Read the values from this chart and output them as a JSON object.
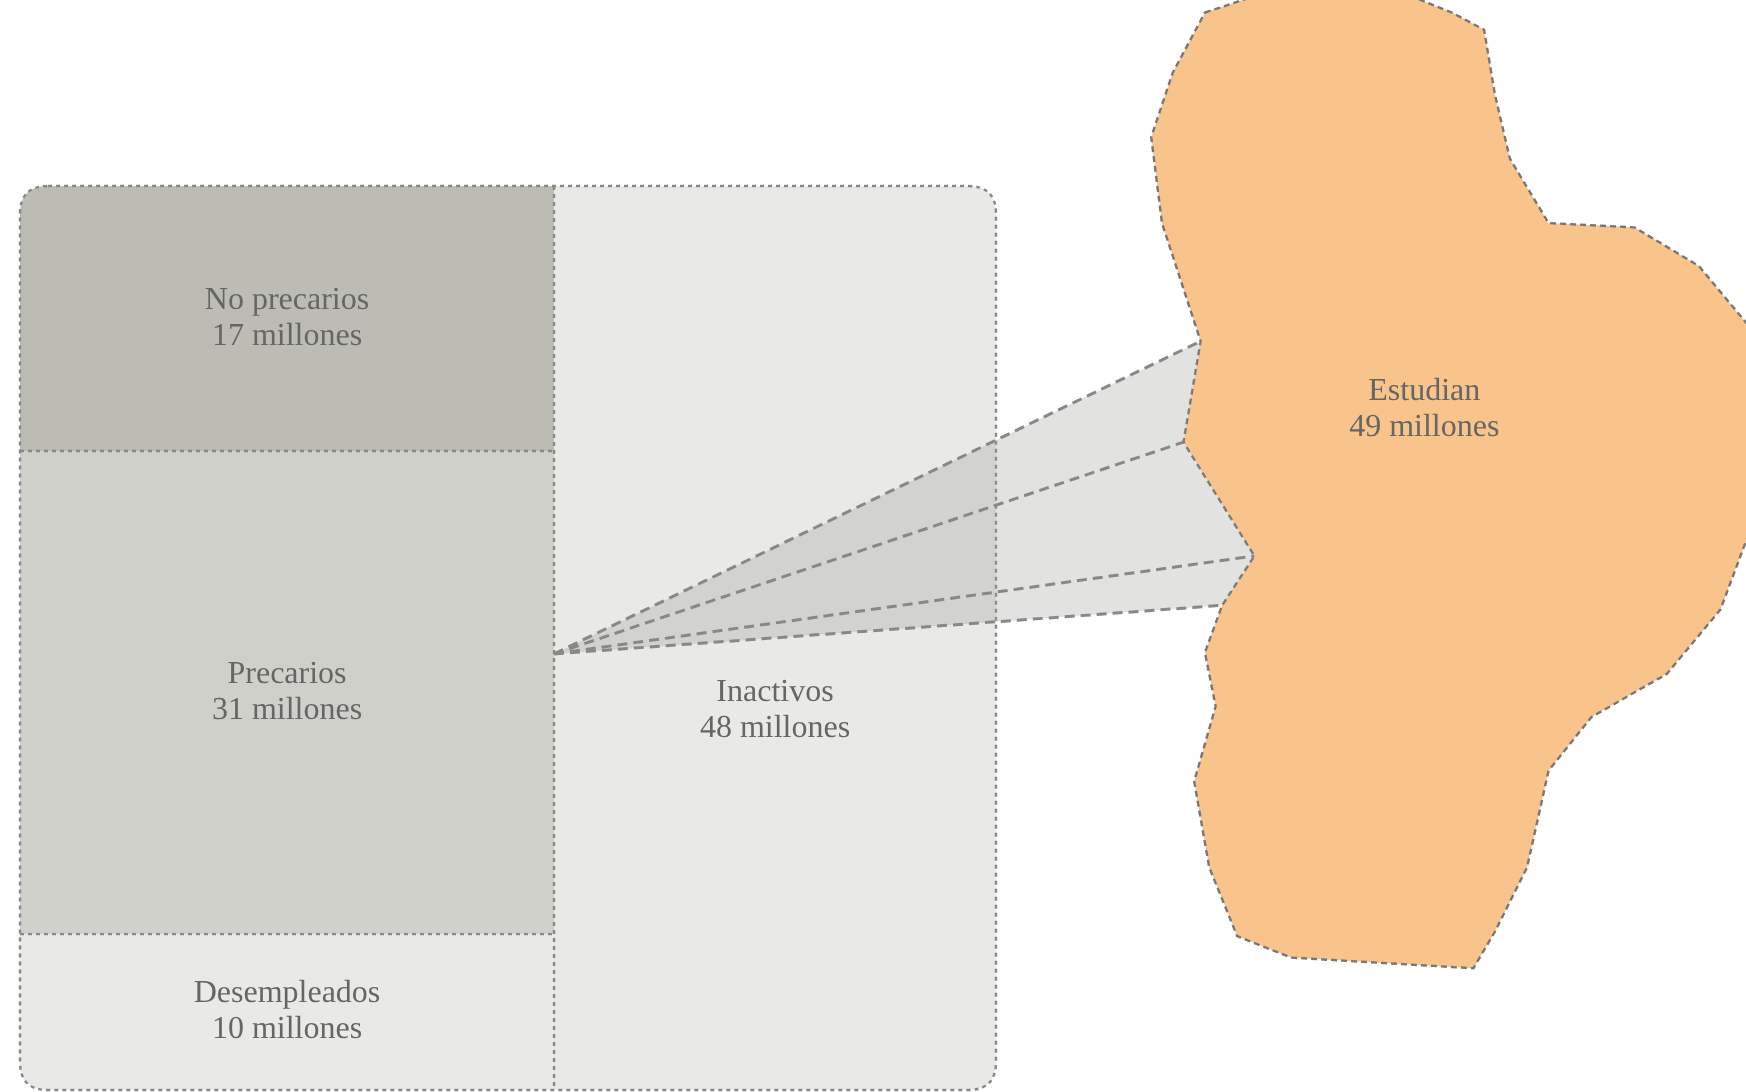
{
  "chart_data": {
    "type": "other",
    "categories": [
      "No precarios",
      "Precarios",
      "Desempleados",
      "Inactivos",
      "Estudian"
    ],
    "values": [
      17,
      31,
      10,
      48,
      49
    ],
    "value_labels": [
      "17 millones",
      "31 millones",
      "10 millones",
      "48 millones",
      "49 millones"
    ],
    "colors": [
      "#bcbcb5",
      "#d0d0ca",
      "#e9e9e6",
      "#e9e9e6",
      "#f9c48c"
    ]
  }
}
